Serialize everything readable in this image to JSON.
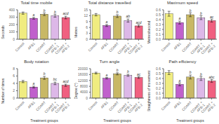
{
  "chart_data": [
    {
      "type": "bar",
      "title": "Total time mobile",
      "ylabel": "Seconds",
      "categories": [
        "Control",
        "AFB1",
        "COART",
        "COART + AFB-1",
        "COART + AFB-2"
      ],
      "values": [
        355,
        285,
        340,
        320,
        295
      ],
      "errors": [
        15,
        12,
        18,
        20,
        18
      ],
      "letters": [
        null,
        "a",
        "b",
        "b",
        "acd"
      ],
      "colors": [
        "#f0ec80",
        "#c060cc",
        "#c8b865",
        "#ddb8e8",
        "#f06080"
      ],
      "ylim": [
        0,
        400
      ],
      "yticks": [
        0,
        100,
        200,
        300,
        400
      ]
    },
    {
      "type": "bar",
      "title": "Total distance travelled",
      "ylabel": "Metres",
      "categories": [
        "Control",
        "AFB1",
        "COART",
        "COART + AFB-1",
        "COART + AFB-2"
      ],
      "values": [
        12.5,
        7.0,
        11.8,
        9.5,
        6.8
      ],
      "errors": [
        0.6,
        0.5,
        0.7,
        0.8,
        0.6
      ],
      "letters": [
        null,
        "a",
        "b",
        "ab",
        "acd"
      ],
      "colors": [
        "#f0ec80",
        "#c060cc",
        "#c8b865",
        "#ddb8e8",
        "#f06080"
      ],
      "ylim": [
        0,
        15
      ],
      "yticks": [
        0,
        3,
        6,
        9,
        12,
        15
      ]
    },
    {
      "type": "bar",
      "title": "Maximum speed",
      "ylabel": "Metres/second",
      "categories": [
        "Control",
        "AFB1",
        "COART",
        "COART + AFB-1",
        "COART + AFB-2"
      ],
      "values": [
        0.52,
        0.34,
        0.5,
        0.44,
        0.38
      ],
      "errors": [
        0.05,
        0.03,
        0.04,
        0.04,
        0.03
      ],
      "letters": [
        null,
        "a",
        "b",
        "b",
        "ac"
      ],
      "colors": [
        "#f0ec80",
        "#c060cc",
        "#c8b865",
        "#ddb8e8",
        "#f06080"
      ],
      "ylim": [
        0.0,
        0.6
      ],
      "yticks": [
        {
          "value": 0.0,
          "label": "0.0"
        },
        0.1,
        0.2,
        0.3,
        0.4,
        0.5,
        0.6
      ]
    },
    {
      "type": "bar",
      "title": "Body rotation",
      "ylabel": "Number of times",
      "xlabel": "Treatment groups",
      "categories": [
        "Control",
        "AFB1",
        "COART",
        "COART + AFB-1",
        "COART + AFB-2"
      ],
      "values": [
        4.5,
        3.0,
        5.5,
        4.0,
        3.5
      ],
      "errors": [
        0.3,
        0.25,
        0.4,
        0.35,
        0.3
      ],
      "letters": [
        null,
        "a",
        "b",
        "bc",
        "acd"
      ],
      "colors": [
        "#f0ec80",
        "#c060cc",
        "#c8b865",
        "#ddb8e8",
        "#f06080"
      ],
      "ylim": [
        0,
        8
      ],
      "yticks": [
        0,
        2,
        4,
        6,
        8
      ]
    },
    {
      "type": "bar",
      "title": "Turn angle",
      "ylabel": "Degree (°)",
      "xlabel": "Treatment groups",
      "categories": [
        "Control",
        "AFB1",
        "COART",
        "COART + AFB-1",
        "COART + AFB-2"
      ],
      "values": [
        17000,
        13500,
        16500,
        15500,
        14000
      ],
      "errors": [
        600,
        500,
        700,
        700,
        600
      ],
      "letters": [
        null,
        "a",
        "b",
        "b",
        "ac"
      ],
      "colors": [
        "#f0ec80",
        "#c060cc",
        "#c8b865",
        "#ddb8e8",
        "#f06080"
      ],
      "ylim": [
        0,
        20000
      ],
      "yticks": [
        0,
        4000,
        8000,
        12000,
        16000,
        20000
      ]
    },
    {
      "type": "bar",
      "title": "Path efficiency",
      "ylabel": "Straightness of movement",
      "xlabel": "Treatment groups",
      "categories": [
        "Control",
        "AFB1",
        "COART",
        "COART + AFB-1",
        "COART + AFB-2"
      ],
      "values": [
        0.52,
        0.28,
        0.43,
        0.4,
        0.35
      ],
      "errors": [
        0.04,
        0.03,
        0.04,
        0.04,
        0.03
      ],
      "letters": [
        null,
        "a",
        "b",
        "b",
        "abc"
      ],
      "colors": [
        "#f0ec80",
        "#c060cc",
        "#c8b865",
        "#ddb8e8",
        "#f06080"
      ],
      "ylim": [
        0.0,
        0.6
      ],
      "yticks": [
        {
          "value": 0.0,
          "label": "0.0"
        },
        0.1,
        0.2,
        0.3,
        0.4,
        0.5,
        0.6
      ]
    }
  ]
}
